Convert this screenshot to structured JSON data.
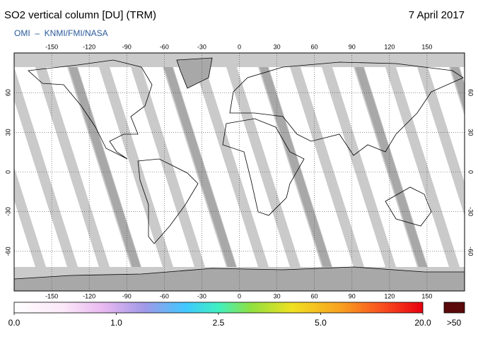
{
  "header": {
    "title": "SO2 vertical column [DU] (TRM)",
    "date": "7 April 2017",
    "credit": "OMI  –  KNMI/FMI/NASA"
  },
  "map": {
    "xlim": [
      -180,
      180
    ],
    "ylim": [
      -90,
      90
    ],
    "lon_ticks": [
      -150,
      -120,
      -90,
      -60,
      -30,
      0,
      30,
      60,
      90,
      120,
      150
    ],
    "lat_ticks": [
      60,
      30,
      0,
      -30,
      -60
    ]
  },
  "colorbar": {
    "ticks": [
      {
        "value": 0,
        "label": "0.0"
      },
      {
        "value": 1,
        "label": "1.0"
      },
      {
        "value": 2.5,
        "label": "2.5"
      },
      {
        "value": 5,
        "label": "5.0"
      },
      {
        "value": 20,
        "label": "20.0"
      }
    ],
    "overflow_label": ">50"
  }
}
